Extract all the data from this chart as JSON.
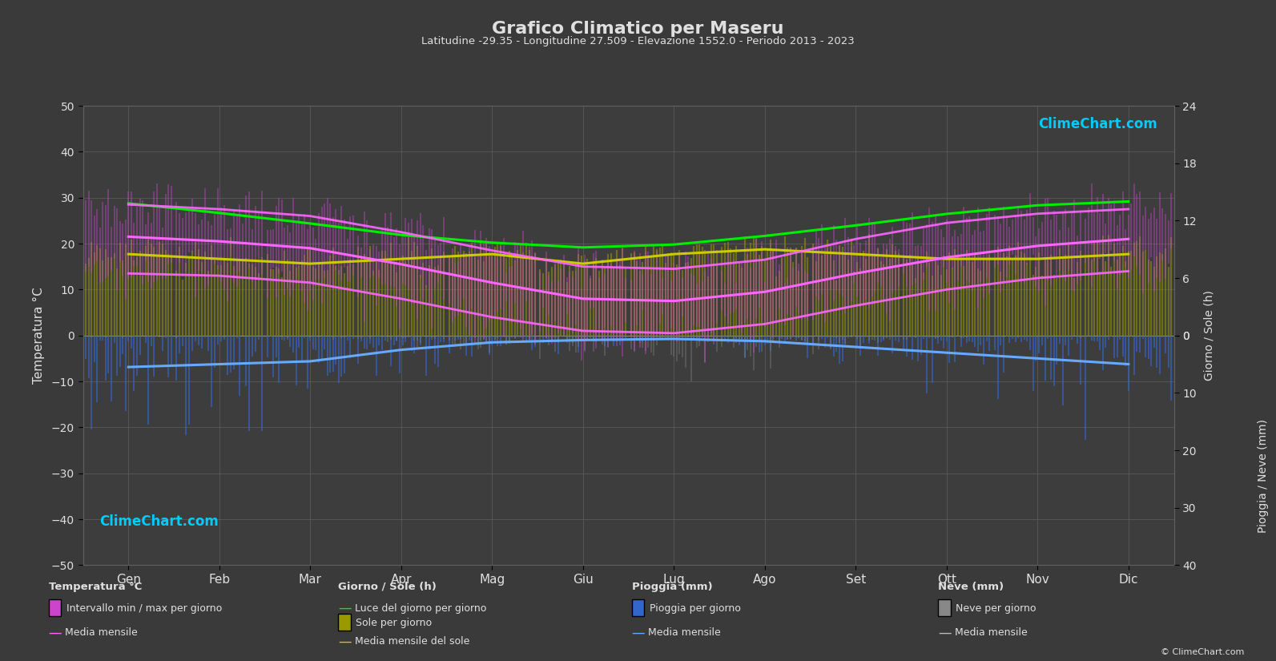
{
  "title": "Grafico Climatico per Maseru",
  "subtitle": "Latitudine -29.35 - Longitudine 27.509 - Elevazione 1552.0 - Periodo 2013 - 2023",
  "bg_color": "#3a3a3a",
  "plot_bg_color": "#3d3d3d",
  "grid_color": "#606060",
  "text_color": "#e0e0e0",
  "months": [
    "Gen",
    "Feb",
    "Mar",
    "Apr",
    "Mag",
    "Giu",
    "Lug",
    "Ago",
    "Set",
    "Ott",
    "Nov",
    "Dic"
  ],
  "temp_ylim": [
    -50,
    50
  ],
  "temp_yticks": [
    -50,
    -40,
    -30,
    -20,
    -10,
    0,
    10,
    20,
    30,
    40,
    50
  ],
  "sun_max": 24,
  "rain_max": 40,
  "temp_mean": [
    21.5,
    20.5,
    19.0,
    15.5,
    11.5,
    8.0,
    7.5,
    9.5,
    13.5,
    17.0,
    19.5,
    21.0
  ],
  "temp_max_mean": [
    28.5,
    27.5,
    26.0,
    22.5,
    18.5,
    15.0,
    14.5,
    16.5,
    21.0,
    24.5,
    26.5,
    27.5
  ],
  "temp_min_mean": [
    13.5,
    13.0,
    11.5,
    8.0,
    4.0,
    1.0,
    0.5,
    2.5,
    6.5,
    10.0,
    12.5,
    14.0
  ],
  "temp_max_abs": [
    33.0,
    32.0,
    30.0,
    27.0,
    23.0,
    19.0,
    18.5,
    21.0,
    25.5,
    29.0,
    31.0,
    33.0
  ],
  "temp_min_abs": [
    8.0,
    7.5,
    5.5,
    1.5,
    -3.5,
    -7.0,
    -8.0,
    -6.0,
    -2.0,
    2.5,
    6.0,
    8.5
  ],
  "daylight_hours": [
    13.8,
    12.8,
    11.7,
    10.5,
    9.7,
    9.2,
    9.5,
    10.4,
    11.5,
    12.7,
    13.6,
    14.0
  ],
  "sunshine_hours": [
    8.5,
    8.0,
    7.5,
    8.0,
    8.5,
    7.5,
    8.5,
    9.0,
    8.5,
    8.0,
    8.0,
    8.5
  ],
  "rainfall_mean": [
    5.5,
    5.0,
    4.5,
    2.5,
    1.2,
    0.8,
    0.6,
    1.0,
    2.0,
    3.0,
    4.0,
    5.0
  ],
  "snow_mean": [
    0.1,
    0.1,
    0.2,
    0.5,
    1.0,
    1.5,
    2.0,
    1.5,
    0.8,
    0.2,
    0.1,
    0.1
  ],
  "temp_band_color": "#cc44cc",
  "temp_mean_color": "#ff66ff",
  "daylight_color": "#00ee00",
  "sunshine_bar_color": "#999900",
  "sunshine_mean_color": "#cccc00",
  "rain_bar_color": "#3366cc",
  "rain_mean_color": "#66aaff",
  "snow_bar_color": "#888888",
  "snow_mean_color": "#bbbbbb",
  "watermark_color": "#00ccff"
}
